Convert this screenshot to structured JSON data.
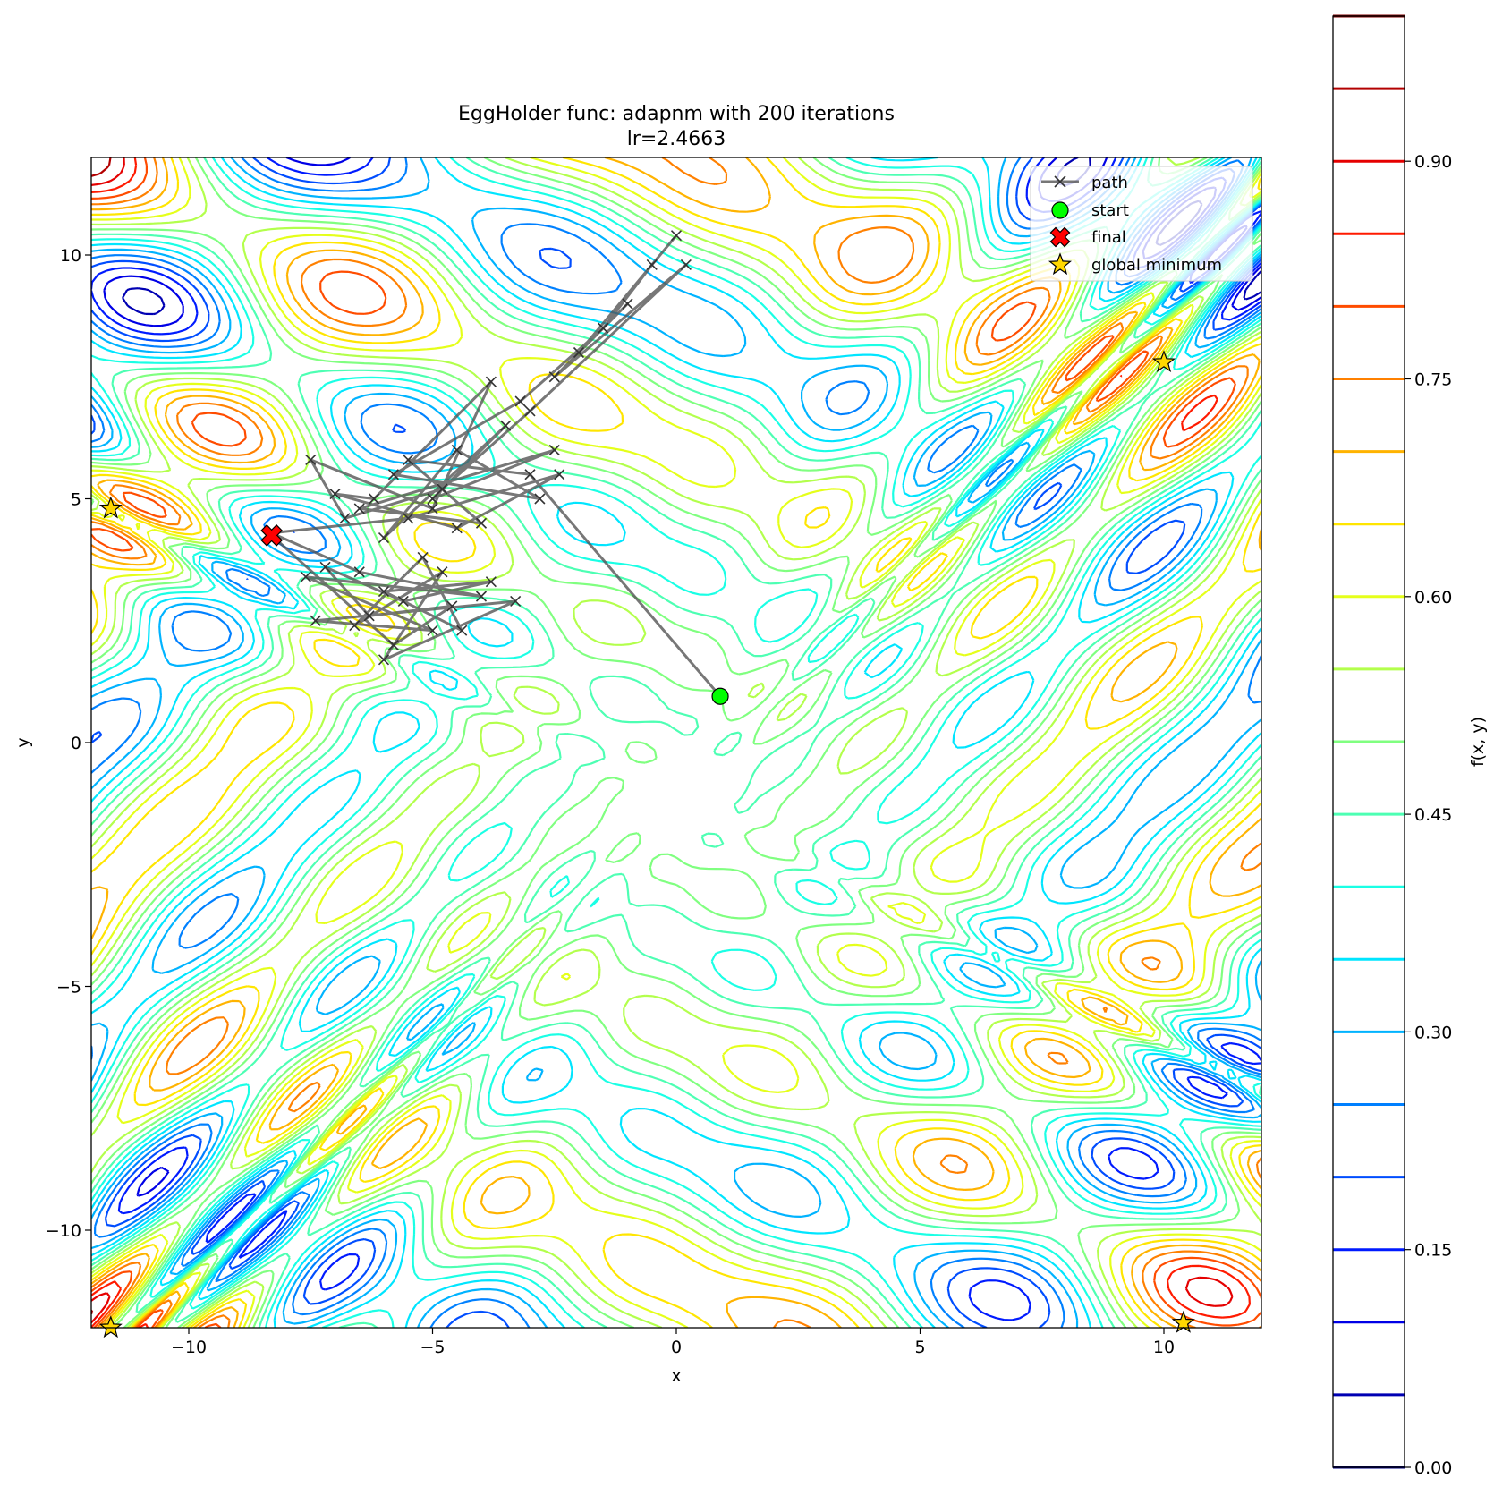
{
  "chart_data": {
    "type": "contour",
    "title": "EggHolder func: adapnm with 200 iterations",
    "subtitle": "lr=2.4663",
    "xlabel": "x",
    "ylabel": "y",
    "xlim": [
      -12,
      12
    ],
    "ylim": [
      -12,
      12
    ],
    "xticks": [
      -10,
      -5,
      0,
      5,
      10
    ],
    "yticks": [
      -10,
      -5,
      0,
      5,
      10
    ],
    "xtick_labels": [
      "−10",
      "−5",
      "0",
      "5",
      "10"
    ],
    "ytick_labels": [
      "−10",
      "−5",
      "0",
      "5",
      "10"
    ],
    "colormap": "jet",
    "colorbar": {
      "label": "f(x, y)",
      "range": [
        0.0,
        1.0
      ],
      "levels": [
        0.0,
        0.05,
        0.1,
        0.15,
        0.2,
        0.25,
        0.3,
        0.35,
        0.4,
        0.45,
        0.5,
        0.55,
        0.6,
        0.65,
        0.7,
        0.75,
        0.8,
        0.85,
        0.9,
        0.95,
        1.0
      ],
      "ticks": [
        0.0,
        0.15,
        0.3,
        0.45,
        0.6,
        0.75,
        0.9
      ],
      "tick_labels": [
        "0.00",
        "0.15",
        "0.30",
        "0.45",
        "0.60",
        "0.75",
        "0.90"
      ]
    },
    "legend": {
      "placement": "top-right",
      "entries": [
        {
          "label": "path",
          "marker": "x",
          "color": "#555555"
        },
        {
          "label": "start",
          "marker": "circle",
          "color": "#00ff00"
        },
        {
          "label": "final",
          "marker": "X",
          "color": "#ff0000"
        },
        {
          "label": "global minimum",
          "marker": "star",
          "color": "#ffd700"
        }
      ]
    },
    "start": [
      0.9,
      0.95
    ],
    "final": [
      -8.3,
      4.25
    ],
    "global_minima": [
      [
        -11.6,
        4.8
      ],
      [
        10.0,
        7.8
      ],
      [
        10.4,
        -11.9
      ],
      [
        -11.6,
        -12.0
      ]
    ],
    "path": [
      [
        0.9,
        0.95
      ],
      [
        -3.0,
        5.5
      ],
      [
        -5.5,
        5.8
      ],
      [
        -4.0,
        4.5
      ],
      [
        -6.5,
        4.8
      ],
      [
        -2.5,
        6.0
      ],
      [
        -5.0,
        5.0
      ],
      [
        -3.5,
        6.5
      ],
      [
        -6.0,
        4.2
      ],
      [
        -4.5,
        6.0
      ],
      [
        -2.8,
        5.0
      ],
      [
        -5.8,
        5.5
      ],
      [
        -3.2,
        7.0
      ],
      [
        -1.5,
        8.5
      ],
      [
        -0.5,
        9.8
      ],
      [
        0.0,
        10.4
      ],
      [
        -2.0,
        8.0
      ],
      [
        -1.0,
        9.0
      ],
      [
        -2.5,
        7.5
      ],
      [
        0.2,
        9.8
      ],
      [
        -3.0,
        6.8
      ],
      [
        -4.8,
        5.2
      ],
      [
        -6.8,
        4.6
      ],
      [
        -7.5,
        5.8
      ],
      [
        -5.0,
        4.8
      ],
      [
        -3.8,
        7.4
      ],
      [
        -6.2,
        5.0
      ],
      [
        -7.0,
        5.1
      ],
      [
        -4.5,
        4.4
      ],
      [
        -2.4,
        5.5
      ],
      [
        -5.5,
        4.6
      ],
      [
        -8.3,
        4.3
      ],
      [
        -6.5,
        3.5
      ],
      [
        -4.0,
        3.0
      ],
      [
        -7.6,
        3.4
      ],
      [
        -5.0,
        2.3
      ],
      [
        -7.4,
        2.5
      ],
      [
        -3.3,
        2.9
      ],
      [
        -6.0,
        1.7
      ],
      [
        -4.8,
        3.5
      ],
      [
        -6.6,
        2.4
      ],
      [
        -5.2,
        3.8
      ],
      [
        -4.4,
        2.3
      ],
      [
        -6.0,
        3.1
      ],
      [
        -3.8,
        3.3
      ],
      [
        -5.6,
        2.9
      ],
      [
        -7.2,
        3.6
      ],
      [
        -6.3,
        2.6
      ],
      [
        -4.6,
        2.8
      ],
      [
        -5.8,
        2.0
      ],
      [
        -8.3,
        4.25
      ]
    ]
  }
}
